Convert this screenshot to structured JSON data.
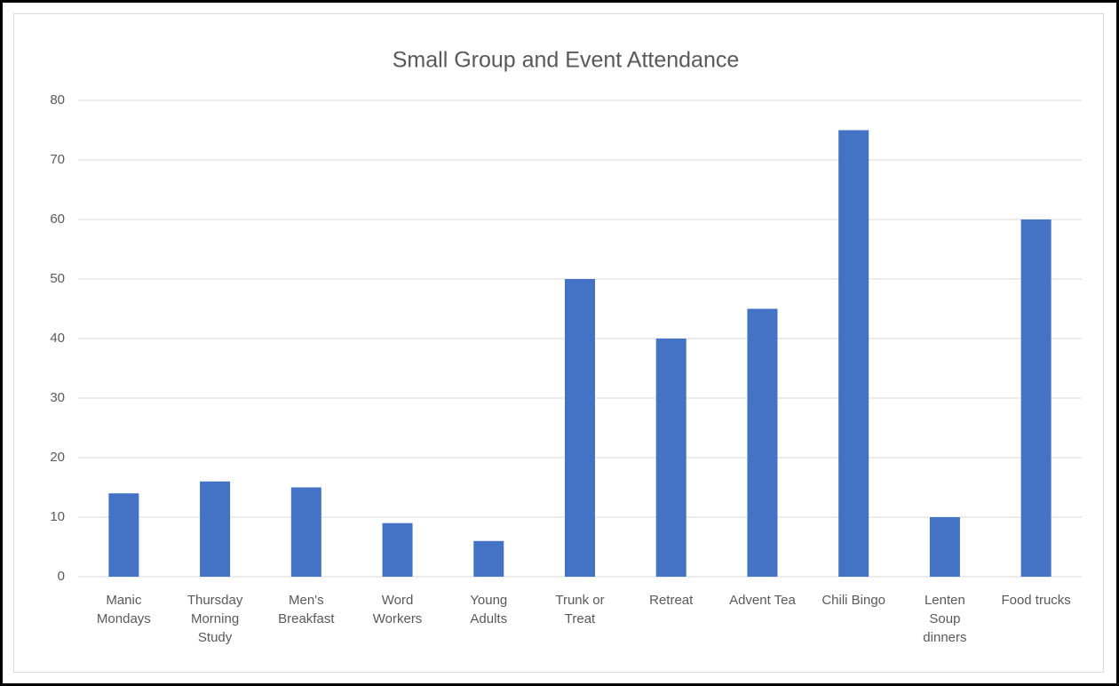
{
  "chart_data": {
    "type": "bar",
    "title": "Small Group and Event Attendance",
    "categories": [
      "Manic Mondays",
      "Thursday Morning Study",
      "Men's Breakfast",
      "Word Workers",
      "Young Adults",
      "Trunk or Treat",
      "Retreat",
      "Advent Tea",
      "Chili Bingo",
      "Lenten Soup dinners",
      "Food trucks"
    ],
    "values": [
      14,
      16,
      15,
      9,
      6,
      50,
      40,
      45,
      75,
      10,
      60
    ],
    "color": "#4472c4",
    "ylim": [
      0,
      80
    ],
    "yticks": [
      0,
      10,
      20,
      30,
      40,
      50,
      60,
      70,
      80
    ],
    "grid": true
  }
}
